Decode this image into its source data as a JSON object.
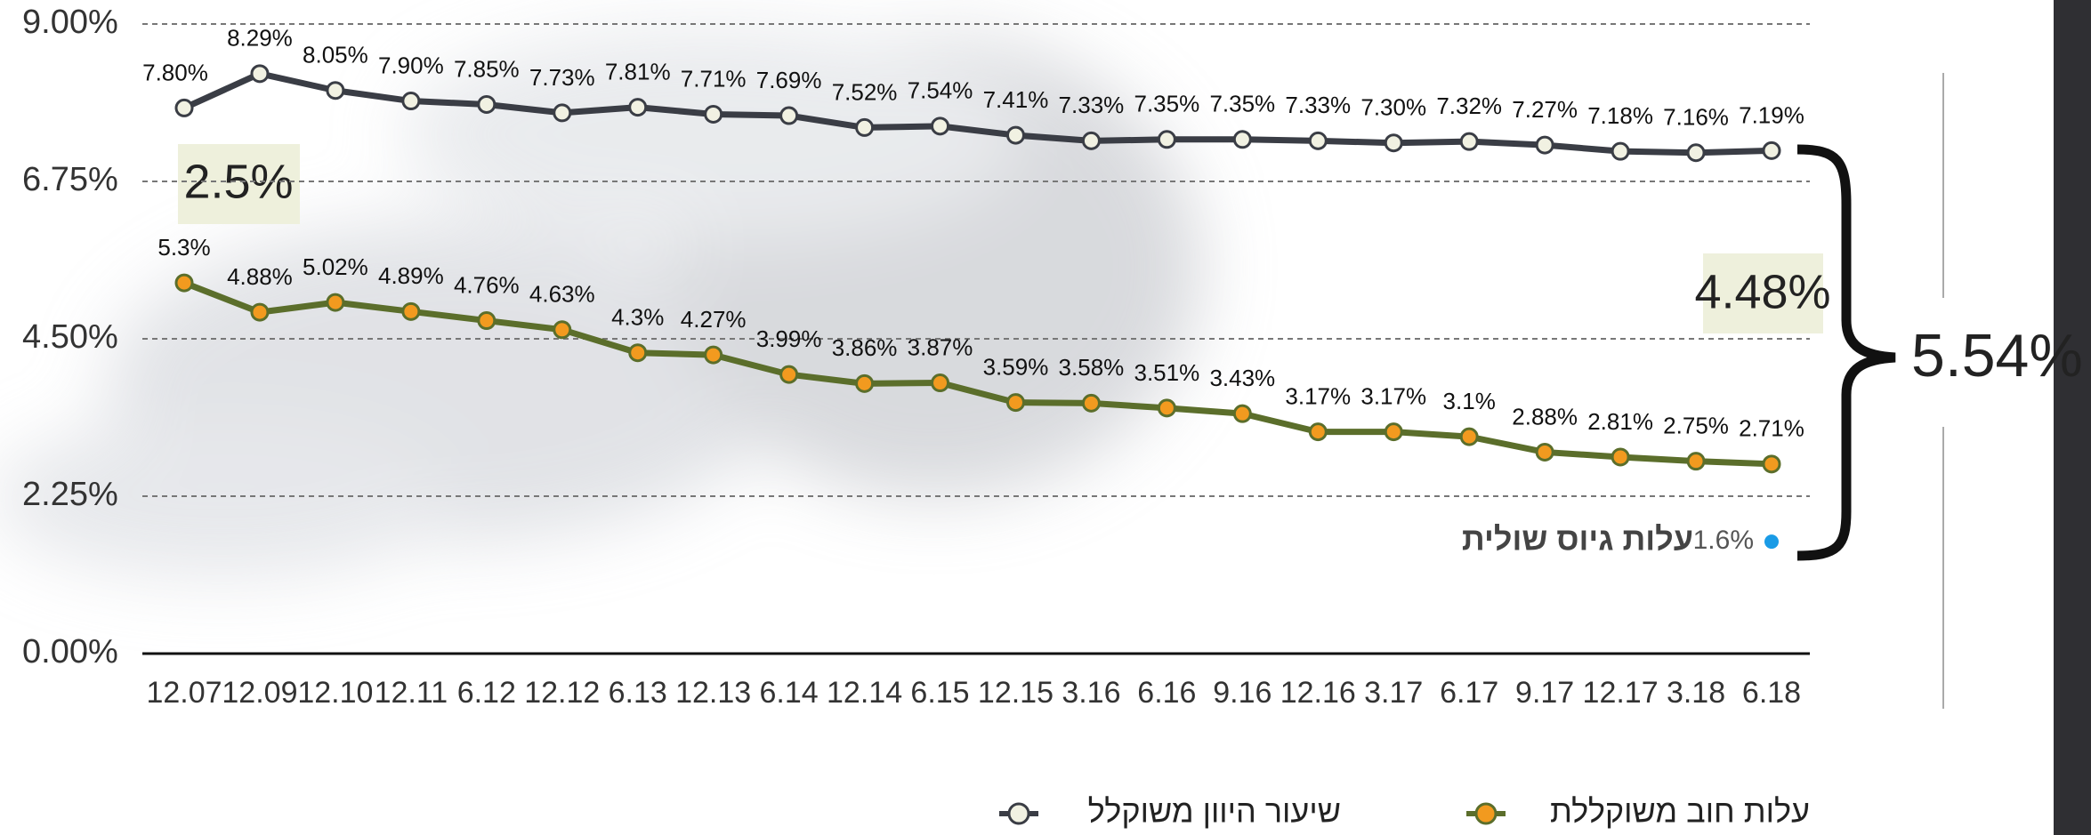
{
  "chart_data": {
    "type": "line",
    "categories": [
      "12.07",
      "12.09",
      "12.10",
      "12.11",
      "6.12",
      "12.12",
      "6.13",
      "12.13",
      "6.14",
      "12.14",
      "6.15",
      "12.15",
      "3.16",
      "6.16",
      "9.16",
      "12.16",
      "3.17",
      "6.17",
      "9.17",
      "12.17",
      "3.18",
      "6.18"
    ],
    "series": [
      {
        "name": "שיעור היוון משוקלל",
        "color": "#3a3d45",
        "marker_color": "#f1f1e2",
        "values": [
          7.8,
          8.29,
          8.05,
          7.9,
          7.85,
          7.73,
          7.81,
          7.71,
          7.69,
          7.52,
          7.54,
          7.41,
          7.33,
          7.35,
          7.35,
          7.33,
          7.3,
          7.32,
          7.27,
          7.18,
          7.16,
          7.19
        ],
        "value_labels": [
          "7.80%",
          "8.29%",
          "8.05%",
          "7.90%",
          "7.85%",
          "7.73%",
          "7.81%",
          "7.71%",
          "7.69%",
          "7.52%",
          "7.54%",
          "7.41%",
          "7.33%",
          "7.35%",
          "7.35%",
          "7.33%",
          "7.30%",
          "7.32%",
          "7.27%",
          "7.18%",
          "7.16%",
          "7.19%"
        ]
      },
      {
        "name": "עלות חוב משוקללת",
        "color": "#5b6e2b",
        "marker_color": "#f29a1f",
        "values": [
          5.3,
          4.88,
          5.02,
          4.89,
          4.76,
          4.63,
          4.3,
          4.27,
          3.99,
          3.86,
          3.87,
          3.59,
          3.58,
          3.51,
          3.43,
          3.17,
          3.17,
          3.1,
          2.88,
          2.81,
          2.75,
          2.71
        ],
        "value_labels": [
          "5.3%",
          "4.88%",
          "5.02%",
          "4.89%",
          "4.76%",
          "4.63%",
          "4.3%",
          "4.27%",
          "3.99%",
          "3.86%",
          "3.87%",
          "3.59%",
          "3.58%",
          "3.51%",
          "3.43%",
          "3.17%",
          "3.17%",
          "3.1%",
          "2.88%",
          "2.81%",
          "2.75%",
          "2.71%"
        ]
      }
    ],
    "marker": {
      "name": "עלות גיוס שולית",
      "value": 1.6,
      "value_label": "1.6%",
      "color": "#1a9be6"
    },
    "annotations": [
      "2.5%",
      "4.48%",
      "5.54%"
    ],
    "ylim": [
      0,
      9
    ],
    "yticks": [
      {
        "value": 0,
        "label": "0.00%"
      },
      {
        "value": 2.25,
        "label": "2.25%"
      },
      {
        "value": 4.5,
        "label": "4.50%"
      },
      {
        "value": 6.75,
        "label": "6.75%"
      },
      {
        "value": 9,
        "label": "9.00%"
      }
    ],
    "grid": true
  }
}
